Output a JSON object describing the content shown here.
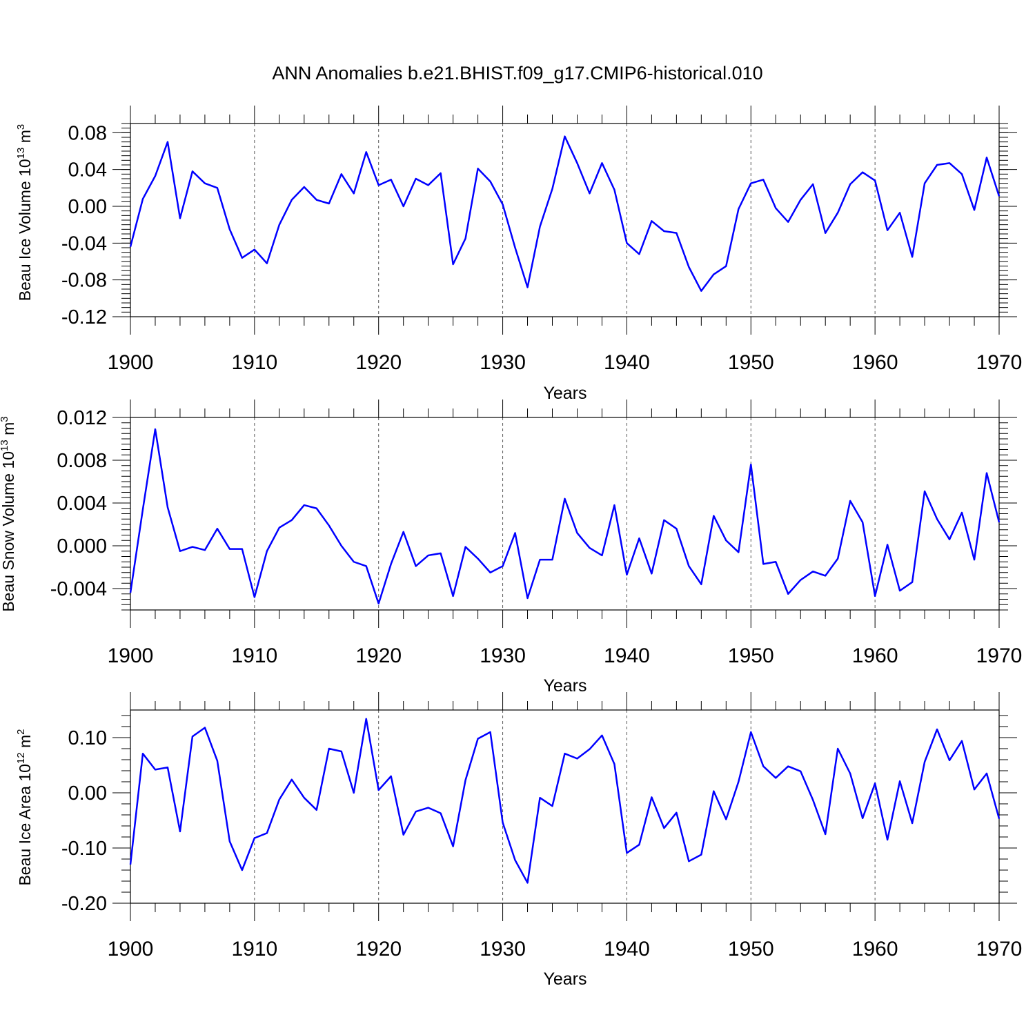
{
  "figure": {
    "title": "ANN Anomalies b.e21.BHIST.f09_g17.CMIP6-historical.010",
    "line_color": "#0000ff"
  },
  "chart_data": [
    {
      "type": "line",
      "title": "",
      "xlabel": "Years",
      "ylabel": "Beau Ice Volume 10",
      "ylabel_sup": "13",
      "ylabel_unit": " m",
      "ylabel_unit_sup": "3",
      "xlim": [
        1900,
        1970
      ],
      "ylim": [
        -0.12,
        0.09
      ],
      "xticks": [
        1900,
        1910,
        1920,
        1930,
        1940,
        1950,
        1960,
        1970
      ],
      "xtick_labels": [
        "1900",
        "1910",
        "1920",
        "1930",
        "1940",
        "1950",
        "1960",
        "1970"
      ],
      "yticks": [
        0.08,
        0.04,
        0.0,
        -0.04,
        -0.08,
        -0.12
      ],
      "ytick_labels": [
        "0.08",
        "0.04",
        "0.00",
        "-0.04",
        "-0.08",
        "-0.12"
      ],
      "grid": "vertical dashed",
      "x_start": 1900,
      "values": [
        -0.044,
        0.008,
        0.033,
        0.07,
        -0.013,
        0.038,
        0.025,
        0.02,
        -0.025,
        -0.056,
        -0.047,
        -0.062,
        -0.02,
        0.007,
        0.021,
        0.007,
        0.003,
        0.035,
        0.014,
        0.059,
        0.023,
        0.029,
        0.0,
        0.03,
        0.023,
        0.036,
        -0.063,
        -0.035,
        0.041,
        0.027,
        0.002,
        -0.045,
        -0.088,
        -0.022,
        0.019,
        0.076,
        0.047,
        0.014,
        0.047,
        0.018,
        -0.04,
        -0.052,
        -0.016,
        -0.027,
        -0.029,
        -0.066,
        -0.092,
        -0.074,
        -0.065,
        -0.003,
        0.025,
        0.029,
        -0.002,
        -0.017,
        0.007,
        0.024,
        -0.029,
        -0.007,
        0.024,
        0.037,
        0.028,
        -0.026,
        -0.007,
        -0.055,
        0.025,
        0.045,
        0.047,
        0.035,
        -0.004,
        0.053,
        0.011
      ]
    },
    {
      "type": "line",
      "title": "",
      "xlabel": "Years",
      "ylabel": "Beau Snow Volume 10",
      "ylabel_sup": "13",
      "ylabel_unit": " m",
      "ylabel_unit_sup": "3",
      "xlim": [
        1900,
        1970
      ],
      "ylim": [
        -0.006,
        0.012
      ],
      "xticks": [
        1900,
        1910,
        1920,
        1930,
        1940,
        1950,
        1960,
        1970
      ],
      "xtick_labels": [
        "1900",
        "1910",
        "1920",
        "1930",
        "1940",
        "1950",
        "1960",
        "1970"
      ],
      "yticks": [
        0.012,
        0.008,
        0.004,
        0.0,
        -0.004
      ],
      "ytick_labels": [
        "0.012",
        "0.008",
        "0.004",
        "0.000",
        "-0.004"
      ],
      "grid": "vertical dashed",
      "x_start": 1900,
      "values": [
        -0.0044,
        0.0034,
        0.0109,
        0.0036,
        -0.0005,
        -0.0001,
        -0.0004,
        0.0016,
        -0.0003,
        -0.0003,
        -0.0048,
        -0.0005,
        0.0017,
        0.0024,
        0.0038,
        0.0035,
        0.0019,
        0.0,
        -0.0015,
        -0.0019,
        -0.0054,
        -0.0017,
        0.0013,
        -0.0019,
        -0.0009,
        -0.0007,
        -0.0047,
        -0.0001,
        -0.0012,
        -0.0025,
        -0.0019,
        0.0012,
        -0.0049,
        -0.0013,
        -0.0013,
        0.0044,
        0.0012,
        -0.0002,
        -0.0009,
        0.0038,
        -0.0027,
        0.0007,
        -0.0026,
        0.0024,
        0.0016,
        -0.0019,
        -0.0036,
        0.0028,
        0.0005,
        -0.0006,
        0.0076,
        -0.0017,
        -0.0015,
        -0.0045,
        -0.0032,
        -0.0024,
        -0.0028,
        -0.0012,
        0.0042,
        0.0022,
        -0.0047,
        0.0001,
        -0.0042,
        -0.0034,
        0.0051,
        0.0025,
        0.0006,
        0.0031,
        -0.0013,
        0.0068,
        0.0022
      ]
    },
    {
      "type": "line",
      "title": "",
      "xlabel": "Years",
      "ylabel": "Beau Ice Area 10",
      "ylabel_sup": "12",
      "ylabel_unit": " m",
      "ylabel_unit_sup": "2",
      "xlim": [
        1900,
        1970
      ],
      "ylim": [
        -0.2,
        0.15
      ],
      "xticks": [
        1900,
        1910,
        1920,
        1930,
        1940,
        1950,
        1960,
        1970
      ],
      "xtick_labels": [
        "1900",
        "1910",
        "1920",
        "1930",
        "1940",
        "1950",
        "1960",
        "1970"
      ],
      "yticks": [
        0.1,
        0.0,
        -0.1,
        -0.2
      ],
      "ytick_labels": [
        "0.10",
        "0.00",
        "-0.10",
        "-0.20"
      ],
      "grid": "vertical dashed",
      "x_start": 1900,
      "values": [
        -0.13,
        0.071,
        0.042,
        0.046,
        -0.07,
        0.102,
        0.118,
        0.058,
        -0.088,
        -0.14,
        -0.082,
        -0.073,
        -0.012,
        0.024,
        -0.009,
        -0.031,
        0.08,
        0.075,
        0.0,
        0.134,
        0.005,
        0.03,
        -0.076,
        -0.034,
        -0.027,
        -0.037,
        -0.097,
        0.023,
        0.098,
        0.11,
        -0.054,
        -0.122,
        -0.163,
        -0.009,
        -0.024,
        0.071,
        0.062,
        0.079,
        0.104,
        0.052,
        -0.109,
        -0.094,
        -0.008,
        -0.064,
        -0.036,
        -0.124,
        -0.112,
        0.003,
        -0.048,
        0.02,
        0.11,
        0.048,
        0.027,
        0.048,
        0.039,
        -0.013,
        -0.075,
        0.08,
        0.035,
        -0.046,
        0.017,
        -0.085,
        0.021,
        -0.055,
        0.056,
        0.115,
        0.059,
        0.094,
        0.006,
        0.035,
        -0.047
      ]
    }
  ]
}
